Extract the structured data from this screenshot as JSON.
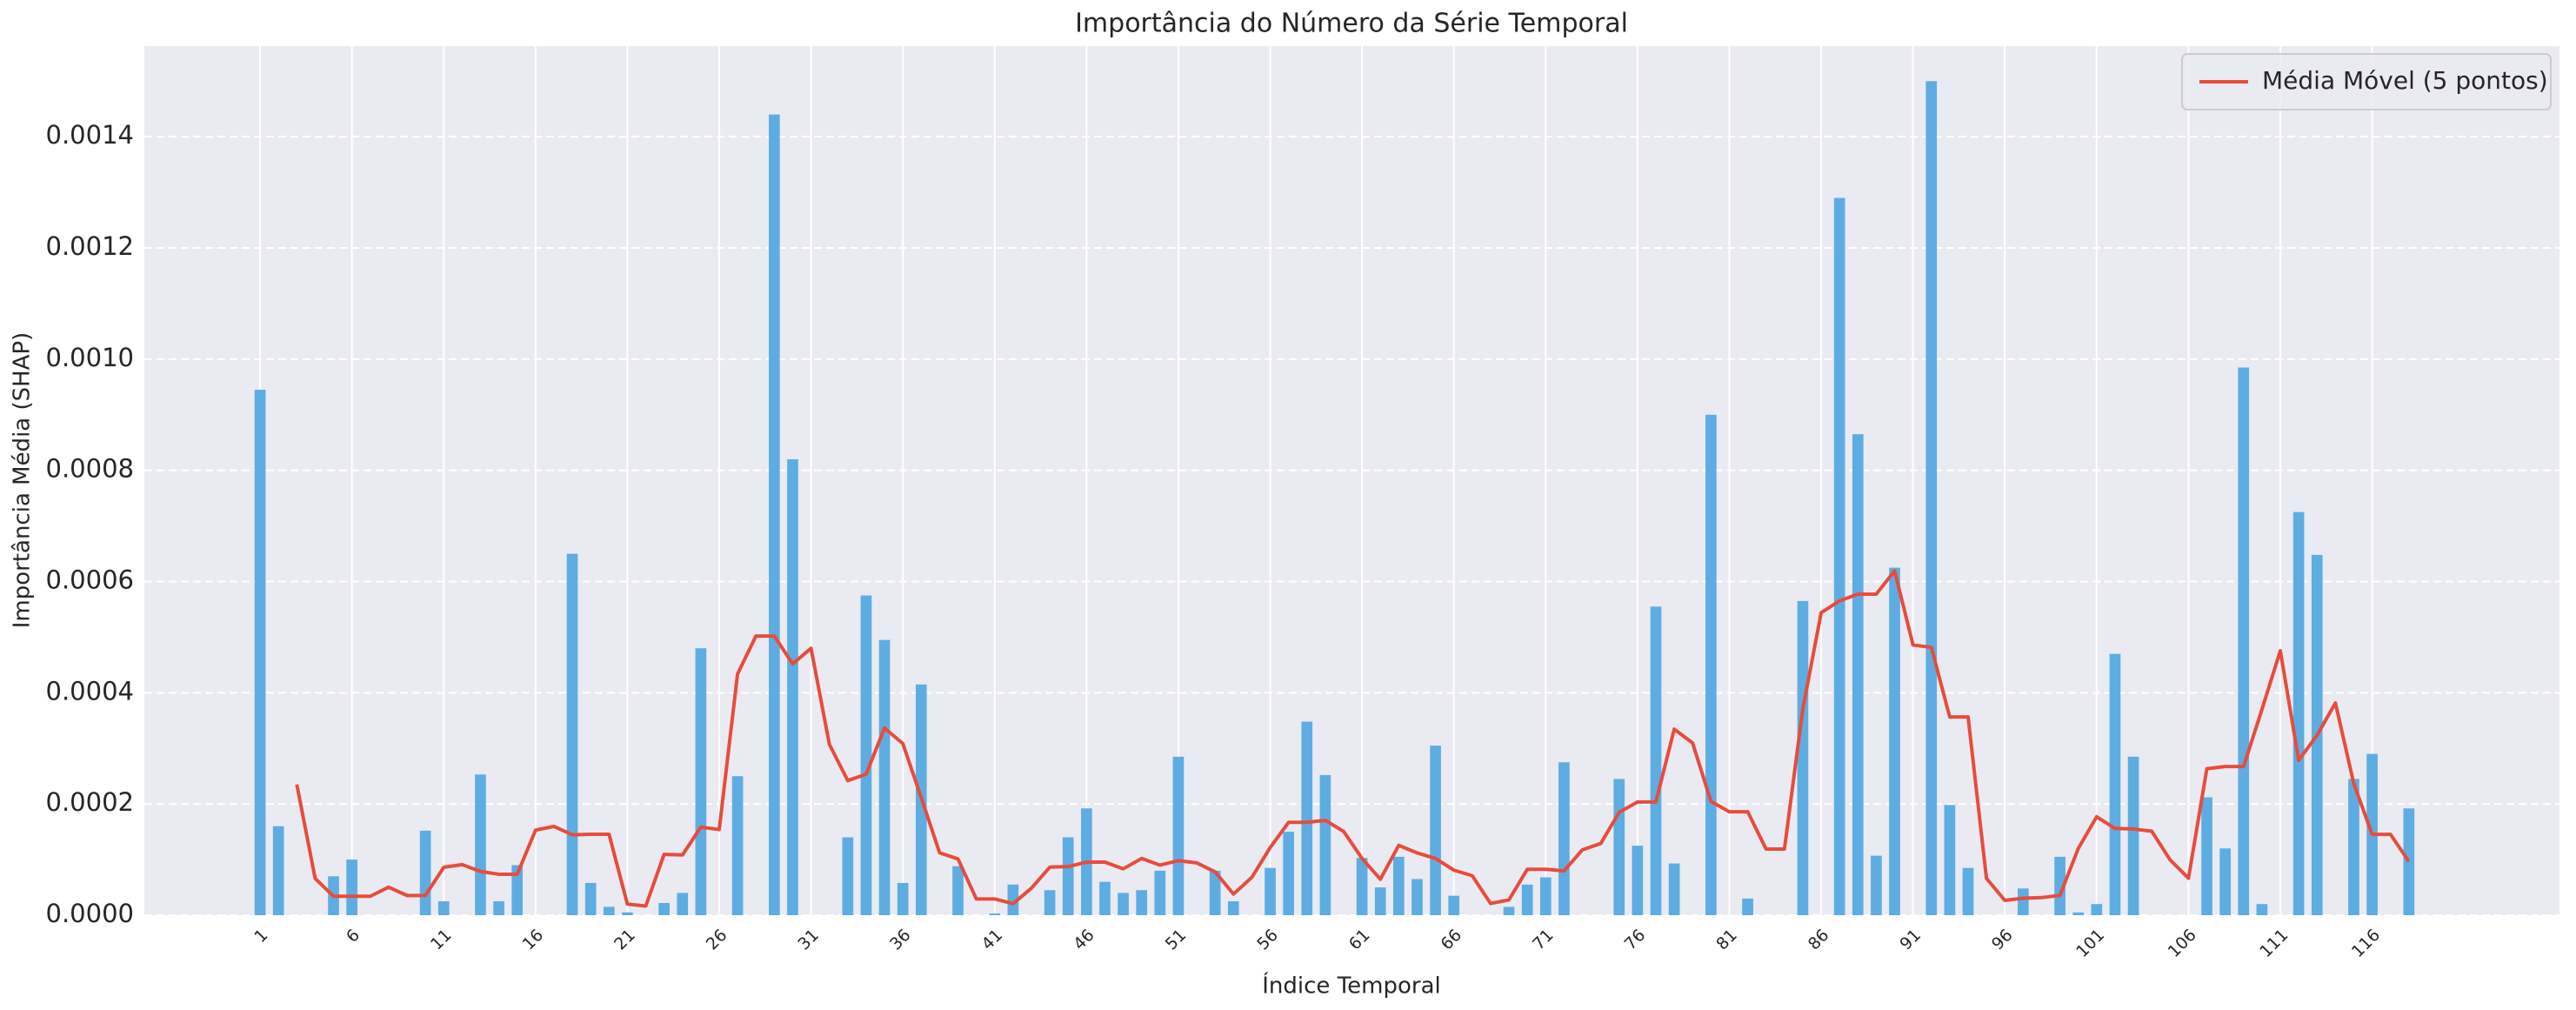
{
  "chart_data": {
    "type": "bar",
    "title": "Importância do Número da Série Temporal",
    "xlabel": "Índice Temporal",
    "ylabel": "Importância Média (SHAP)",
    "x": [
      1,
      2,
      3,
      4,
      5,
      6,
      7,
      8,
      9,
      10,
      11,
      12,
      13,
      14,
      15,
      16,
      17,
      18,
      19,
      20,
      21,
      22,
      23,
      24,
      25,
      26,
      27,
      28,
      29,
      30,
      31,
      32,
      33,
      34,
      35,
      36,
      37,
      38,
      39,
      40,
      41,
      42,
      43,
      44,
      45,
      46,
      47,
      48,
      49,
      50,
      51,
      52,
      53,
      54,
      55,
      56,
      57,
      58,
      59,
      60,
      61,
      62,
      63,
      64,
      65,
      66,
      67,
      68,
      69,
      70,
      71,
      72,
      73,
      74,
      75,
      76,
      77,
      78,
      79,
      80,
      81,
      82,
      83,
      84,
      85,
      86,
      87,
      88,
      89,
      90,
      91,
      92,
      93,
      94,
      95,
      96,
      97,
      98,
      99,
      100,
      101,
      102,
      103,
      104,
      105,
      106,
      107,
      108,
      109,
      110,
      111,
      112,
      113,
      114,
      115,
      116,
      117,
      118,
      119,
      120
    ],
    "series": [
      {
        "type": "bar",
        "color": "#5dade2",
        "values": [
          0.000945,
          0.00016,
          0,
          0,
          7e-05,
          0.0001,
          0,
          0,
          0,
          0.000152,
          2.5e-05,
          0,
          0.000253,
          2.5e-05,
          9e-05,
          0,
          0,
          0.00065,
          5.8e-05,
          1.5e-05,
          5e-06,
          0,
          2.2e-05,
          4e-05,
          0.00048,
          0,
          0.00025,
          0,
          0.00144,
          0.00082,
          0,
          0,
          0.00014,
          0.000575,
          0.000495,
          5.8e-05,
          0.000415,
          0,
          8.8e-05,
          0,
          3e-06,
          5.5e-05,
          0,
          4.5e-05,
          0.00014,
          0.000192,
          6e-05,
          4e-05,
          4.5e-05,
          8e-05,
          0.000285,
          0,
          8e-05,
          2.5e-05,
          0,
          8.5e-05,
          0.00015,
          0.000348,
          0.000252,
          0,
          0.000103,
          5e-05,
          0.000105,
          6.5e-05,
          0.000305,
          3.5e-05,
          0,
          0,
          1.5e-05,
          5.5e-05,
          6.8e-05,
          0.000275,
          0,
          0,
          0.000245,
          0.000125,
          0.000555,
          9.3e-05,
          0,
          0.0009,
          0,
          3e-05,
          0,
          0,
          0.000565,
          0,
          0.00129,
          0.000865,
          0.000107,
          0.000625,
          0,
          0.0015,
          0.000198,
          8.5e-05,
          0,
          0,
          4.8e-05,
          0,
          0.000105,
          5e-06,
          2e-05,
          0.00047,
          0.000285,
          0,
          0,
          0,
          0.000212,
          0.00012,
          0.000985,
          2e-05,
          0,
          0.000725,
          0.000648,
          0,
          0.000245,
          0.00029,
          0,
          0.000192,
          0,
          0
        ]
      },
      {
        "type": "line",
        "name": "Média Móvel (5 pontos)",
        "color": "#e74c3c",
        "values": [
          null,
          null,
          0.000235,
          6.6e-05,
          3.4e-05,
          3.4e-05,
          3.4e-05,
          5.04e-05,
          3.54e-05,
          3.54e-05,
          8.6e-05,
          9.1e-05,
          7.86e-05,
          7.36e-05,
          7.36e-05,
          0.000153,
          0.0001596,
          0.0001446,
          0.0001456,
          0.0001456,
          2e-05,
          1.64e-05,
          0.0001094,
          0.0001084,
          0.0001584,
          0.000154,
          0.000434,
          0.000502,
          0.000502,
          0.000452,
          0.00048,
          0.000307,
          0.000242,
          0.0002536,
          0.0003366,
          0.0003086,
          0.0002112,
          0.0001122,
          0.0001012,
          2.92e-05,
          2.92e-05,
          2.06e-05,
          4.86e-05,
          8.64e-05,
          8.74e-05,
          9.54e-05,
          9.54e-05,
          8.34e-05,
          0.000102,
          9e-05,
          9.8e-05,
          9.4e-05,
          7.8e-05,
          3.8e-05,
          6.8e-05,
          0.0001216,
          0.000167,
          0.000167,
          0.0001706,
          0.0001506,
          0.000102,
          6.46e-05,
          0.0001256,
          0.000112,
          0.000102,
          8.1e-05,
          7.1e-05,
          2.1e-05,
          2.76e-05,
          8.26e-05,
          8.26e-05,
          7.96e-05,
          0.0001176,
          0.000129,
          0.000185,
          0.0002036,
          0.0002036,
          0.0003346,
          0.0003096,
          0.0002046,
          0.000186,
          0.000186,
          0.000119,
          0.000119,
          0.000371,
          0.000544,
          0.0005654,
          0.0005774,
          0.0005774,
          0.0006194,
          0.000486,
          0.0004816,
          0.0003566,
          0.0003566,
          6.62e-05,
          2.66e-05,
          3.06e-05,
          3.16e-05,
          3.56e-05,
          0.00012,
          0.000177,
          0.000156,
          0.000155,
          0.000151,
          9.94e-05,
          6.64e-05,
          0.0002634,
          0.0002674,
          0.0002674,
          0.00037,
          0.0004756,
          0.0002786,
          0.0003236,
          0.0003816,
          0.0002366,
          0.0001454,
          0.0001454,
          9.64e-05,
          null,
          null
        ]
      }
    ],
    "xlim": [
      -5.3,
      126.2
    ],
    "ylim": [
      0,
      0.001563
    ],
    "xticks": [
      1,
      6,
      11,
      16,
      21,
      26,
      31,
      36,
      41,
      46,
      51,
      56,
      61,
      66,
      71,
      76,
      81,
      86,
      91,
      96,
      101,
      106,
      111,
      116
    ],
    "yticks": [
      {
        "value": 0,
        "label": "0.0000"
      },
      0.0002,
      0.0004,
      0.0006,
      0.0008,
      {
        "value": 0.001,
        "label": "0.0010"
      },
      0.0012,
      0.0014
    ],
    "bar_width": 0.6,
    "grid": true,
    "legend": "upper right"
  }
}
